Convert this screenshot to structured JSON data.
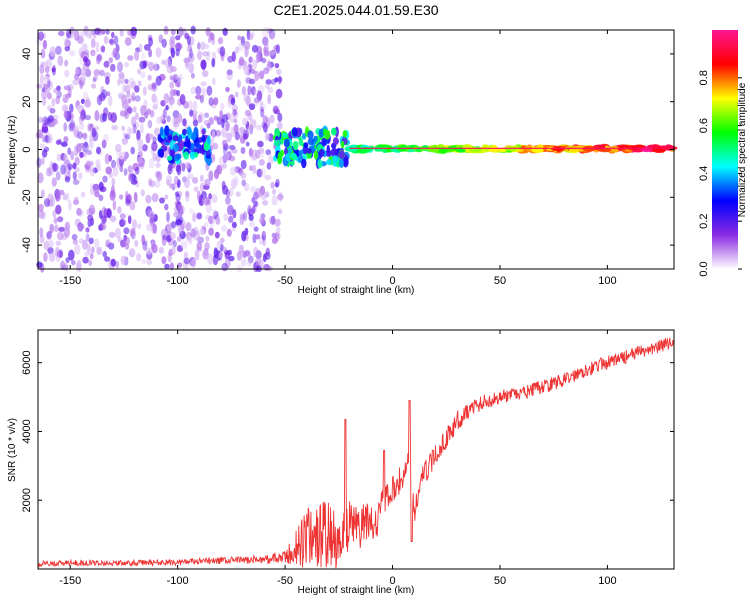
{
  "title": "C2E1.2025.044.01.59.E30",
  "chart_data": [
    {
      "type": "heatmap",
      "xlabel": "Height of straight line (km)",
      "ylabel": "Frequency (Hz)",
      "xlim": [
        -165,
        131
      ],
      "ylim": [
        -50,
        50
      ],
      "xticks": [
        -150,
        -100,
        -50,
        0,
        50,
        100
      ],
      "yticks": [
        -40,
        -20,
        0,
        20,
        40
      ],
      "grid": false,
      "colorbar": {
        "label": "Normalized spectral amplitude",
        "range": [
          0.0,
          1.0
        ],
        "ticks": [
          "0.0",
          "0.2",
          "0.4",
          "0.6",
          "0.8"
        ],
        "colormap": [
          "#ffffff",
          "#8a2be2",
          "#0000ff",
          "#00ffff",
          "#00ff00",
          "#ffff00",
          "#ff0000",
          "#ff1493"
        ]
      },
      "regions": [
        {
          "x_range": [
            -165,
            -52
          ],
          "freq_range": [
            -50,
            50
          ],
          "amplitude": 0.1,
          "description": "broadband noise"
        },
        {
          "x_range": [
            -108,
            -85
          ],
          "freq_range": [
            -5,
            8
          ],
          "amplitude": 0.25
        },
        {
          "x_range": [
            -55,
            -20
          ],
          "freq_range": [
            -6,
            8
          ],
          "amplitude": 0.3
        },
        {
          "x_range": [
            -20,
            131
          ],
          "freq_range": [
            -2,
            3
          ],
          "amplitude": 0.8
        }
      ]
    },
    {
      "type": "line",
      "xlabel": "Height of straight line (km)",
      "ylabel": "SNR (10 * v/v)",
      "xlim": [
        -165,
        131
      ],
      "ylim": [
        0,
        6950
      ],
      "xticks": [
        -150,
        -100,
        -50,
        0,
        50,
        100
      ],
      "yticks": [
        2000,
        4000,
        6000
      ],
      "grid": false,
      "color": "#ee3333",
      "x": [
        -165,
        -150,
        -125,
        -100,
        -75,
        -60,
        -50,
        -45,
        -40,
        -35,
        -30,
        -25,
        -20,
        -15,
        -10,
        -8,
        -5,
        -2,
        0,
        5,
        8,
        10,
        12,
        15,
        20,
        25,
        30,
        35,
        40,
        50,
        60,
        70,
        80,
        90,
        100,
        110,
        120,
        131
      ],
      "y": [
        150,
        180,
        170,
        200,
        250,
        280,
        320,
        600,
        900,
        1000,
        1000,
        700,
        1300,
        1200,
        1500,
        1200,
        1900,
        2100,
        2300,
        2700,
        3300,
        1500,
        2300,
        2800,
        3300,
        3800,
        4300,
        4600,
        4800,
        5000,
        5100,
        5300,
        5500,
        5800,
        6000,
        6200,
        6400,
        6600
      ],
      "noise": [
        80,
        80,
        80,
        90,
        100,
        120,
        200,
        600,
        900,
        1000,
        1000,
        800,
        700,
        600,
        600,
        500,
        400,
        400,
        400,
        400,
        400,
        400,
        350,
        350,
        300,
        300,
        300,
        250,
        250,
        200,
        200,
        200,
        200,
        200,
        200,
        200,
        200,
        200
      ],
      "spikes": [
        {
          "x": -22,
          "y": 4350
        },
        {
          "x": -4,
          "y": 3450
        },
        {
          "x": 8,
          "y": 4900
        },
        {
          "x": 9,
          "y": 800
        }
      ]
    }
  ]
}
